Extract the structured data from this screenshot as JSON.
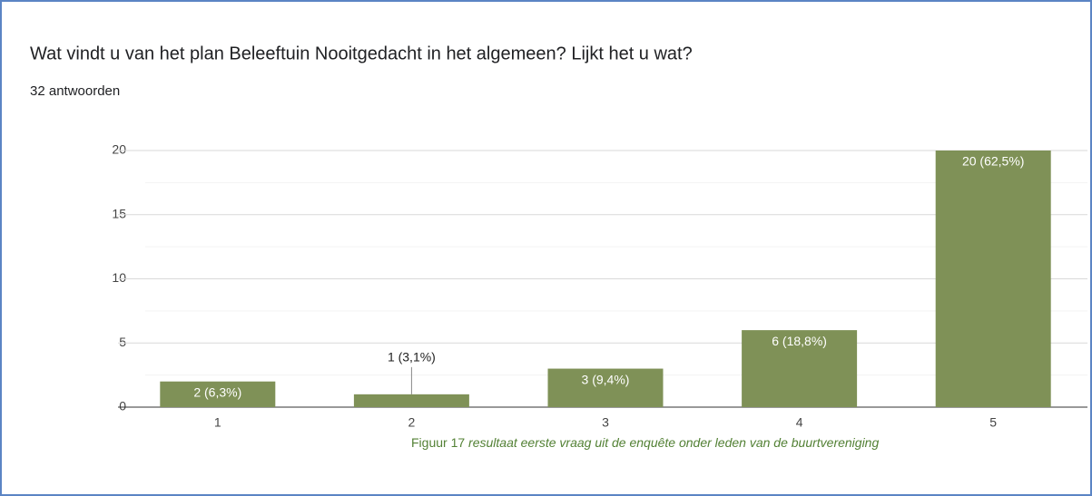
{
  "chart_data": {
    "type": "bar",
    "title": "Wat vindt u van het plan Beleeftuin Nooitgedacht in het algemeen? Lijkt het u wat?",
    "subtitle": "32 antwoorden",
    "categories": [
      "1",
      "2",
      "3",
      "4",
      "5"
    ],
    "values": [
      2,
      1,
      3,
      6,
      20
    ],
    "value_labels": [
      "2 (6,3%)",
      "1 (3,1%)",
      "3 (9,4%)",
      "6 (18,8%)",
      "20 (62,5%)"
    ],
    "color": "#7f9157",
    "ylim": [
      0,
      20
    ],
    "yticks": [
      0,
      5,
      10,
      15,
      20
    ],
    "minor_yticks": [
      2.5,
      7.5,
      12.5,
      17.5
    ],
    "grid": true
  },
  "caption": {
    "label": "Figuur 17",
    "text": "resultaat eerste vraag uit de enquête onder leden van de buurtvereniging"
  }
}
